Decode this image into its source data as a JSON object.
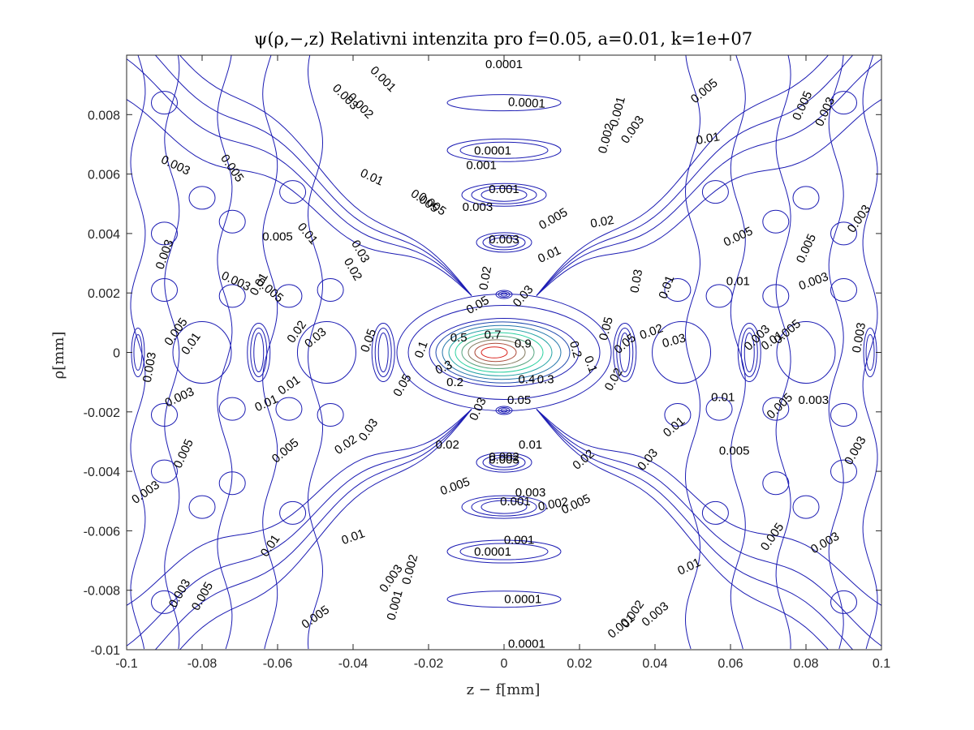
{
  "chart_data": {
    "type": "contour",
    "title": "ψ(ρ,−,z) Relativni intenzita pro f=0.05, a=0.01, k=1e+07",
    "xlabel": "z − f[mm]",
    "ylabel": "ρ[mm]",
    "xlim": [
      -0.1,
      0.1
    ],
    "ylim": [
      -0.01,
      0.01
    ],
    "xticks": [
      -0.1,
      -0.08,
      -0.06,
      -0.04,
      -0.02,
      0,
      0.02,
      0.04,
      0.06,
      0.08,
      0.1
    ],
    "xtick_labels": [
      "-0.1",
      "-0.08",
      "-0.06",
      "-0.04",
      "-0.02",
      "0",
      "0.02",
      "0.04",
      "0.06",
      "0.08",
      "0.1"
    ],
    "yticks": [
      -0.01,
      -0.008,
      -0.006,
      -0.004,
      -0.002,
      0,
      0.002,
      0.004,
      0.006,
      0.008
    ],
    "ytick_labels": [
      "-0.01",
      "-0.008",
      "-0.006",
      "-0.004",
      "-0.002",
      "0",
      "0.002",
      "0.004",
      "0.006",
      "0.008"
    ],
    "grid": false,
    "levels": [
      0.0001,
      0.001,
      0.002,
      0.003,
      0.005,
      0.01,
      0.02,
      0.03,
      0.05,
      0.1,
      0.2,
      0.3,
      0.4,
      0.5,
      0.6,
      0.7,
      0.8,
      0.9
    ],
    "colors": {
      "low": "#1b1bb3",
      "mid": "#2ad1a0",
      "high": "#d9211b"
    },
    "contour_labels": [
      {
        "text": "0.0001",
        "x": 0,
        "y": 0.0097,
        "rot": 0
      },
      {
        "text": "0.0001",
        "x": 0.006,
        "y": 0.0084,
        "rot": 3
      },
      {
        "text": "0.0001",
        "x": -0.003,
        "y": 0.0068,
        "rot": 0
      },
      {
        "text": "0.001",
        "x": -0.006,
        "y": 0.0063,
        "rot": 0
      },
      {
        "text": "0.001",
        "x": 0.0,
        "y": 0.0055,
        "rot": 0
      },
      {
        "text": "0.003",
        "x": -0.007,
        "y": 0.0049,
        "rot": 0
      },
      {
        "text": "0.005",
        "x": -0.019,
        "y": 0.005,
        "rot": 35
      },
      {
        "text": "0.003",
        "x": 0.0,
        "y": 0.0038,
        "rot": 0
      },
      {
        "text": "0.005",
        "x": 0.013,
        "y": 0.0045,
        "rot": -30
      },
      {
        "text": "0.01",
        "x": 0.012,
        "y": 0.0033,
        "rot": -25
      },
      {
        "text": "0.02",
        "x": 0.026,
        "y": 0.0044,
        "rot": -10
      },
      {
        "text": "0.03",
        "x": -0.038,
        "y": 0.0034,
        "rot": 60
      },
      {
        "text": "0.02",
        "x": -0.04,
        "y": 0.0028,
        "rot": 60
      },
      {
        "text": "0.02",
        "x": -0.005,
        "y": 0.0025,
        "rot": -80
      },
      {
        "text": "0.03",
        "x": 0.005,
        "y": 0.0019,
        "rot": -50
      },
      {
        "text": "0.05",
        "x": -0.007,
        "y": 0.0016,
        "rot": -30
      },
      {
        "text": "0.03",
        "x": 0.035,
        "y": 0.0024,
        "rot": -80
      },
      {
        "text": "0.01",
        "x": 0.043,
        "y": 0.0022,
        "rot": -70
      },
      {
        "text": "0.01",
        "x": -0.052,
        "y": 0.004,
        "rot": 50
      },
      {
        "text": "0.005",
        "x": -0.06,
        "y": 0.0039,
        "rot": 0
      },
      {
        "text": "0.005",
        "x": -0.062,
        "y": 0.0021,
        "rot": 40
      },
      {
        "text": "0.003",
        "x": -0.071,
        "y": 0.0024,
        "rot": 25
      },
      {
        "text": "0.01",
        "x": -0.065,
        "y": 0.0023,
        "rot": -60
      },
      {
        "text": "0.003",
        "x": -0.09,
        "y": 0.0033,
        "rot": -70
      },
      {
        "text": "0.003",
        "x": -0.087,
        "y": 0.0063,
        "rot": 25
      },
      {
        "text": "0.005",
        "x": -0.072,
        "y": 0.0062,
        "rot": 55
      },
      {
        "text": "0.01",
        "x": -0.035,
        "y": 0.0059,
        "rot": 25
      },
      {
        "text": "0.005",
        "x": -0.021,
        "y": 0.0051,
        "rot": 35
      },
      {
        "text": "0.003",
        "x": -0.042,
        "y": 0.0086,
        "rot": 45
      },
      {
        "text": "0.002",
        "x": -0.038,
        "y": 0.0083,
        "rot": 45
      },
      {
        "text": "0.001",
        "x": -0.032,
        "y": 0.0092,
        "rot": 45
      },
      {
        "text": "0.005",
        "x": 0.053,
        "y": 0.0088,
        "rot": -40
      },
      {
        "text": "0.001",
        "x": 0.03,
        "y": 0.0081,
        "rot": -75
      },
      {
        "text": "0.002",
        "x": 0.027,
        "y": 0.0072,
        "rot": -75
      },
      {
        "text": "0.003",
        "x": 0.034,
        "y": 0.0075,
        "rot": -55
      },
      {
        "text": "0.01",
        "x": 0.054,
        "y": 0.0072,
        "rot": -10
      },
      {
        "text": "0.005",
        "x": 0.079,
        "y": 0.0083,
        "rot": -65
      },
      {
        "text": "0.003",
        "x": 0.085,
        "y": 0.0081,
        "rot": -65
      },
      {
        "text": "0.005",
        "x": 0.062,
        "y": 0.0039,
        "rot": -25
      },
      {
        "text": "0.005",
        "x": 0.08,
        "y": 0.0035,
        "rot": -65
      },
      {
        "text": "0.003",
        "x": 0.094,
        "y": 0.0045,
        "rot": -55
      },
      {
        "text": "0.003",
        "x": 0.082,
        "y": 0.0024,
        "rot": -20
      },
      {
        "text": "0.01",
        "x": 0.062,
        "y": 0.0024,
        "rot": 0
      },
      {
        "text": "0.02",
        "x": -0.055,
        "y": 0.0007,
        "rot": -55
      },
      {
        "text": "0.03",
        "x": -0.05,
        "y": 0.0005,
        "rot": -40
      },
      {
        "text": "0.05",
        "x": -0.036,
        "y": 0.0004,
        "rot": -70
      },
      {
        "text": "0.1",
        "x": -0.022,
        "y": 0.0001,
        "rot": -70
      },
      {
        "text": "0.5",
        "x": -0.012,
        "y": 0.0005,
        "rot": 0
      },
      {
        "text": "0.7",
        "x": -0.003,
        "y": 0.0006,
        "rot": 0
      },
      {
        "text": "0.9",
        "x": 0.005,
        "y": 0.0003,
        "rot": 0
      },
      {
        "text": "0.3",
        "x": -0.016,
        "y": -0.0005,
        "rot": -25
      },
      {
        "text": "0.2",
        "x": -0.013,
        "y": -0.001,
        "rot": 0
      },
      {
        "text": "0.4",
        "x": 0.006,
        "y": -0.0009,
        "rot": 0
      },
      {
        "text": "0.3",
        "x": 0.011,
        "y": -0.0009,
        "rot": 0
      },
      {
        "text": "0.2",
        "x": 0.019,
        "y": 0.0001,
        "rot": 75
      },
      {
        "text": "0.1",
        "x": 0.023,
        "y": -0.0004,
        "rot": 70
      },
      {
        "text": "0.05",
        "x": 0.027,
        "y": 0.0008,
        "rot": -75
      },
      {
        "text": "0.05",
        "x": 0.032,
        "y": 0.0003,
        "rot": -40
      },
      {
        "text": "0.02",
        "x": 0.039,
        "y": 0.0007,
        "rot": -20
      },
      {
        "text": "0.03",
        "x": 0.045,
        "y": 0.0004,
        "rot": -15
      },
      {
        "text": "0.02",
        "x": 0.029,
        "y": -0.0009,
        "rot": -60
      },
      {
        "text": "0.003",
        "x": 0.067,
        "y": 0.0005,
        "rot": -45
      },
      {
        "text": "0.01",
        "x": 0.071,
        "y": 0.0004,
        "rot": -35
      },
      {
        "text": "0.005",
        "x": 0.075,
        "y": 0.0007,
        "rot": -40
      },
      {
        "text": "0.003",
        "x": 0.094,
        "y": 0.0005,
        "rot": -80
      },
      {
        "text": "0.003",
        "x": -0.094,
        "y": -0.0005,
        "rot": -80
      },
      {
        "text": "0.01",
        "x": -0.083,
        "y": 0.0003,
        "rot": -55
      },
      {
        "text": "0.005",
        "x": -0.087,
        "y": 0.0007,
        "rot": -55
      },
      {
        "text": "0.01",
        "x": -0.057,
        "y": -0.0011,
        "rot": -35
      },
      {
        "text": "0.01",
        "x": -0.063,
        "y": -0.0017,
        "rot": -25
      },
      {
        "text": "0.003",
        "x": -0.086,
        "y": -0.0015,
        "rot": -25
      },
      {
        "text": "0.05",
        "x": -0.027,
        "y": -0.0011,
        "rot": -60
      },
      {
        "text": "0.05",
        "x": 0.004,
        "y": -0.0016,
        "rot": 0
      },
      {
        "text": "0.03",
        "x": -0.007,
        "y": -0.0019,
        "rot": -65
      },
      {
        "text": "0.03",
        "x": -0.036,
        "y": -0.0026,
        "rot": -55
      },
      {
        "text": "0.02",
        "x": -0.042,
        "y": -0.0031,
        "rot": -35
      },
      {
        "text": "0.02",
        "x": -0.015,
        "y": -0.0031,
        "rot": 0
      },
      {
        "text": "0.01",
        "x": 0.007,
        "y": -0.0031,
        "rot": 0
      },
      {
        "text": "0.002",
        "x": 0.0,
        "y": -0.0035,
        "rot": 0
      },
      {
        "text": "0.003",
        "x": 0.0,
        "y": -0.0036,
        "rot": 0
      },
      {
        "text": "0.02",
        "x": 0.021,
        "y": -0.0036,
        "rot": -40
      },
      {
        "text": "0.03",
        "x": 0.038,
        "y": -0.0036,
        "rot": -50
      },
      {
        "text": "0.01",
        "x": 0.045,
        "y": -0.0025,
        "rot": -40
      },
      {
        "text": "0.01",
        "x": 0.058,
        "y": -0.0015,
        "rot": 0
      },
      {
        "text": "0.005",
        "x": 0.073,
        "y": -0.0018,
        "rot": -45
      },
      {
        "text": "0.003",
        "x": 0.082,
        "y": -0.0016,
        "rot": 0
      },
      {
        "text": "0.005",
        "x": 0.061,
        "y": -0.0033,
        "rot": 0
      },
      {
        "text": "0.003",
        "x": 0.093,
        "y": -0.0033,
        "rot": -60
      },
      {
        "text": "0.005",
        "x": -0.085,
        "y": -0.0034,
        "rot": -65
      },
      {
        "text": "0.005",
        "x": -0.058,
        "y": -0.0033,
        "rot": -40
      },
      {
        "text": "0.003",
        "x": -0.095,
        "y": -0.0047,
        "rot": -35
      },
      {
        "text": "0.005",
        "x": -0.013,
        "y": -0.0045,
        "rot": -20
      },
      {
        "text": "0.003",
        "x": 0.007,
        "y": -0.0047,
        "rot": 0
      },
      {
        "text": "0.001",
        "x": 0.003,
        "y": -0.005,
        "rot": 0
      },
      {
        "text": "0.002",
        "x": 0.013,
        "y": -0.0051,
        "rot": -10
      },
      {
        "text": "0.005",
        "x": 0.019,
        "y": -0.0051,
        "rot": -25
      },
      {
        "text": "0.01",
        "x": -0.04,
        "y": -0.0062,
        "rot": -20
      },
      {
        "text": "0.01",
        "x": -0.062,
        "y": -0.0065,
        "rot": -55
      },
      {
        "text": "0.001",
        "x": 0.004,
        "y": -0.0063,
        "rot": 0
      },
      {
        "text": "0.0001",
        "x": -0.003,
        "y": -0.0067,
        "rot": 0
      },
      {
        "text": "0.005",
        "x": 0.071,
        "y": -0.0062,
        "rot": -55
      },
      {
        "text": "0.003",
        "x": 0.085,
        "y": -0.0064,
        "rot": -30
      },
      {
        "text": "0.01",
        "x": 0.049,
        "y": -0.0072,
        "rot": -25
      },
      {
        "text": "0.003",
        "x": -0.03,
        "y": -0.0076,
        "rot": -55
      },
      {
        "text": "0.002",
        "x": -0.025,
        "y": -0.0073,
        "rot": -75
      },
      {
        "text": "0.001",
        "x": -0.029,
        "y": -0.0085,
        "rot": -75
      },
      {
        "text": "0.003",
        "x": -0.086,
        "y": -0.0081,
        "rot": -60
      },
      {
        "text": "0.005",
        "x": -0.08,
        "y": -0.0082,
        "rot": -60
      },
      {
        "text": "0.005",
        "x": -0.05,
        "y": -0.0089,
        "rot": -35
      },
      {
        "text": "0.0001",
        "x": 0.005,
        "y": -0.0083,
        "rot": 0
      },
      {
        "text": "0.002",
        "x": 0.034,
        "y": -0.0088,
        "rot": -55
      },
      {
        "text": "0.003",
        "x": 0.04,
        "y": -0.0088,
        "rot": -40
      },
      {
        "text": "0.001",
        "x": 0.031,
        "y": -0.0092,
        "rot": -40
      },
      {
        "text": "0.0001",
        "x": 0.006,
        "y": -0.0098,
        "rot": 0
      }
    ]
  }
}
